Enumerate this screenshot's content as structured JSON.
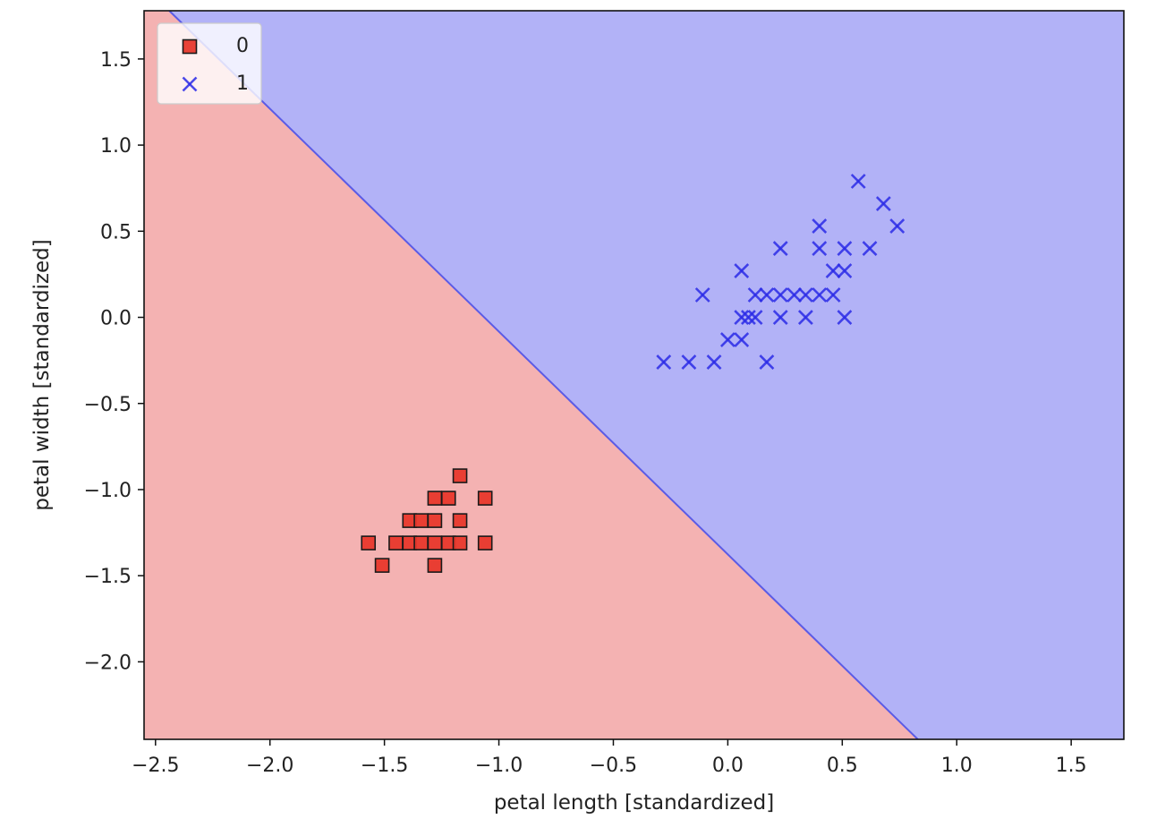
{
  "chart_data": {
    "type": "scatter",
    "title": "",
    "xlabel": "petal length [standardized]",
    "ylabel": "petal width [standardized]",
    "xlim": [
      -2.55,
      1.73
    ],
    "ylim": [
      -2.45,
      1.78
    ],
    "xticks": [
      -2.5,
      -2.0,
      -1.5,
      -1.0,
      -0.5,
      0.0,
      0.5,
      1.0,
      1.5
    ],
    "xtick_labels": [
      "−2.5",
      "−2.0",
      "−1.5",
      "−1.0",
      "−0.5",
      "0.0",
      "0.5",
      "1.0",
      "1.5"
    ],
    "yticks": [
      -2.0,
      -1.5,
      -1.0,
      -0.5,
      0.0,
      0.5,
      1.0,
      1.5
    ],
    "ytick_labels": [
      "−2.0",
      "−1.5",
      "−1.0",
      "−0.5",
      "0.0",
      "0.5",
      "1.0",
      "1.5"
    ],
    "grid": false,
    "legend_position": "top-left",
    "decision_boundary": {
      "points": [
        [
          -2.44,
          1.78
        ],
        [
          0.83,
          -2.45
        ]
      ],
      "region_colors": [
        "#f4b2b2",
        "#b2b2f7"
      ],
      "line_color": "#5b5be6"
    },
    "series": [
      {
        "name": "0",
        "marker": "square",
        "color": "#e8382c",
        "edgecolor": "#1a1a1a",
        "x": [
          -1.17,
          -1.28,
          -1.22,
          -1.06,
          -1.39,
          -1.34,
          -1.28,
          -1.17,
          -1.57,
          -1.45,
          -1.39,
          -1.34,
          -1.28,
          -1.22,
          -1.17,
          -1.06,
          -1.51,
          -1.28
        ],
        "y": [
          -0.92,
          -1.05,
          -1.05,
          -1.05,
          -1.18,
          -1.18,
          -1.18,
          -1.18,
          -1.31,
          -1.31,
          -1.31,
          -1.31,
          -1.31,
          -1.31,
          -1.31,
          -1.31,
          -1.44,
          -1.44
        ]
      },
      {
        "name": "1",
        "marker": "x",
        "color": "#2a2ae6",
        "x": [
          0.57,
          0.68,
          0.4,
          0.74,
          0.23,
          0.4,
          0.51,
          0.62,
          0.06,
          0.46,
          0.51,
          -0.11,
          0.12,
          0.17,
          0.23,
          0.29,
          0.34,
          0.4,
          0.46,
          0.06,
          0.09,
          0.12,
          0.23,
          0.34,
          0.51,
          0.0,
          0.06,
          -0.28,
          -0.17,
          -0.06,
          0.17
        ],
        "y": [
          0.79,
          0.66,
          0.53,
          0.53,
          0.4,
          0.4,
          0.4,
          0.4,
          0.27,
          0.27,
          0.27,
          0.13,
          0.13,
          0.13,
          0.13,
          0.13,
          0.13,
          0.13,
          0.13,
          0.0,
          0.0,
          0.0,
          0.0,
          0.0,
          0.0,
          -0.13,
          -0.13,
          -0.26,
          -0.26,
          -0.26,
          -0.26
        ]
      }
    ]
  }
}
